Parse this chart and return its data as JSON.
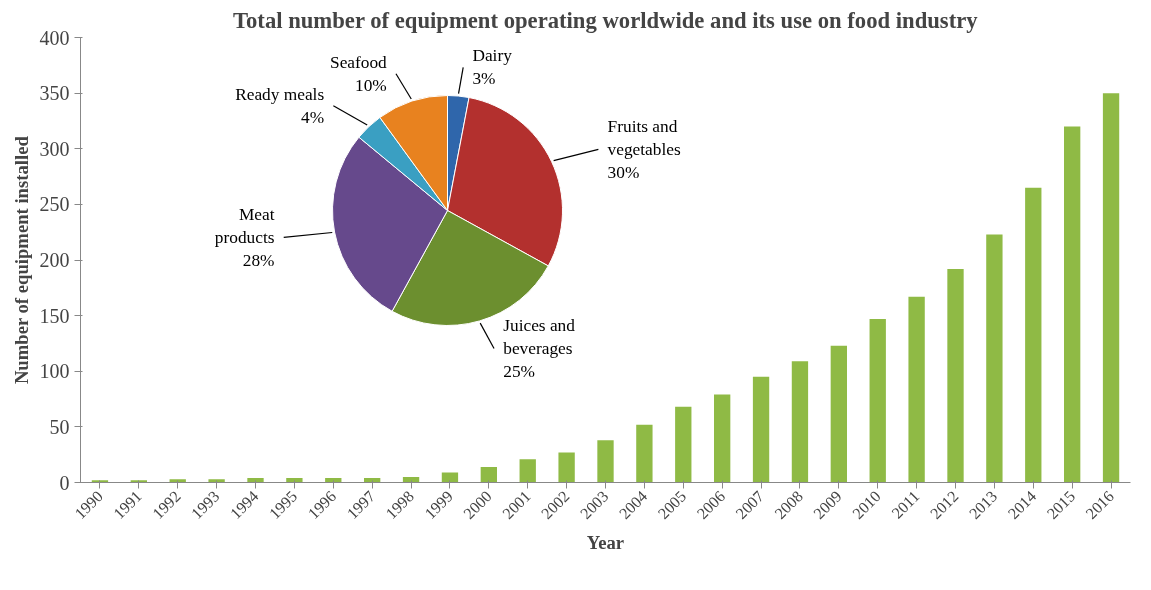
{
  "chart_data": [
    {
      "type": "bar",
      "title": "Total number of equipment operating worldwide and its use on food industry",
      "xlabel": "Year",
      "ylabel": "Number of equipment installed",
      "categories": [
        "1990",
        "1991",
        "1992",
        "1993",
        "1994",
        "1995",
        "1996",
        "1997",
        "1998",
        "1999",
        "2000",
        "2001",
        "2002",
        "2003",
        "2004",
        "2005",
        "2006",
        "2007",
        "2008",
        "2009",
        "2010",
        "2011",
        "2012",
        "2013",
        "2014",
        "2015",
        "2016"
      ],
      "values": [
        2,
        2,
        3,
        3,
        4,
        4,
        4,
        4,
        5,
        9,
        14,
        21,
        27,
        38,
        52,
        68,
        79,
        95,
        109,
        123,
        147,
        167,
        192,
        223,
        265,
        320,
        350
      ],
      "color": "#8fba45",
      "ylim": [
        0,
        400
      ],
      "yticks": [
        0,
        50,
        100,
        150,
        200,
        250,
        300,
        350,
        400
      ],
      "grid": false
    },
    {
      "type": "pie",
      "categories": [
        "Dairy",
        "Fruits and vegetables",
        "Juices and beverages",
        "Meat products",
        "Ready meals",
        "Seafood"
      ],
      "values": [
        3,
        30,
        25,
        28,
        4,
        10
      ],
      "colors": [
        "#2f66ab",
        "#b3302e",
        "#6c8f2f",
        "#66498c",
        "#3a9fc2",
        "#e8821f"
      ],
      "value_labels": [
        "3%",
        "30%",
        "25%",
        "28%",
        "4%",
        "10%"
      ]
    }
  ]
}
